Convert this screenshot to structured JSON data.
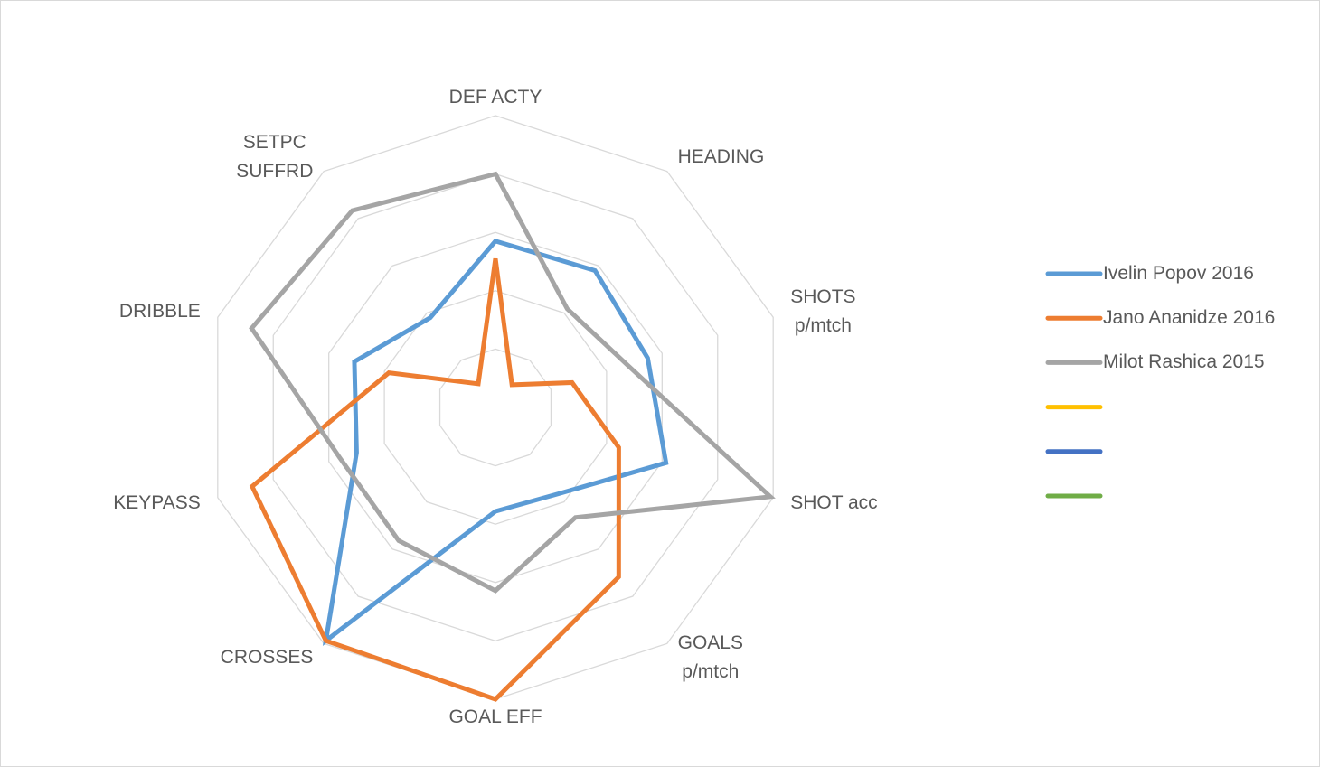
{
  "chart_data": {
    "type": "radar",
    "categories": [
      "DEF ACTY",
      "HEADING",
      "SHOTS\np/mtch",
      "SHOT acc",
      "GOALS\np/mtch",
      "GOAL EFF",
      "CROSSES",
      "KEYPASS",
      "DRIBBLE",
      "SETPC\nSUFFRD"
    ],
    "rlim": [
      0,
      5
    ],
    "rticks": [
      1,
      2,
      3,
      4,
      5
    ],
    "grid": true,
    "legend": "right",
    "series": [
      {
        "name": "Ivelin Popov 2016",
        "color": "#5b9bd5",
        "values": [
          2.85,
          2.9,
          2.74,
          3.07,
          1.83,
          1.78,
          4.94,
          2.5,
          2.54,
          1.9
        ]
      },
      {
        "name": "Jano Ananidze 2016",
        "color": "#ed7d31",
        "values": [
          2.55,
          0.48,
          1.38,
          2.22,
          3.59,
          5.0,
          4.94,
          4.38,
          1.92,
          0.5
        ]
      },
      {
        "name": "Milot Rashica 2015",
        "color": "#a5a5a5",
        "values": [
          4.0,
          2.09,
          2.37,
          4.95,
          2.33,
          3.14,
          2.82,
          2.8,
          4.39,
          4.17
        ]
      },
      {
        "color": "#ffc000"
      },
      {
        "color": "#4472c4"
      },
      {
        "color": "#70ad47"
      }
    ]
  }
}
